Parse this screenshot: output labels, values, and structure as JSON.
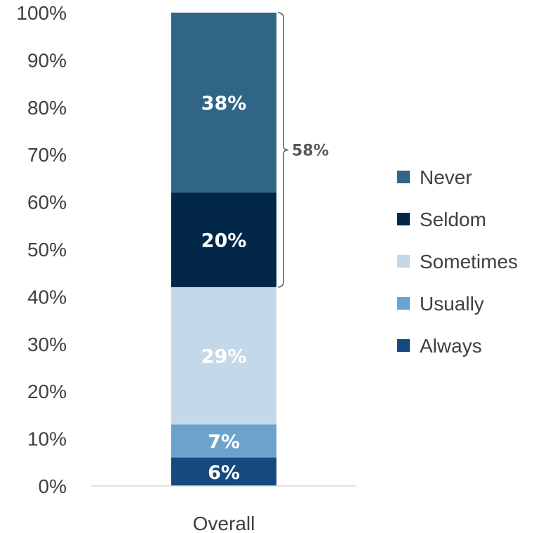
{
  "chart_data": {
    "type": "bar",
    "stacked": true,
    "categories": [
      "Overall"
    ],
    "series": [
      {
        "name": "Always",
        "values": [
          6
        ],
        "label": "6%",
        "color": "#16497e"
      },
      {
        "name": "Usually",
        "values": [
          7
        ],
        "label": "7%",
        "color": "#6ca3cc"
      },
      {
        "name": "Sometimes",
        "values": [
          29
        ],
        "label": "29%",
        "color": "#c3d8e8"
      },
      {
        "name": "Seldom",
        "values": [
          20
        ],
        "label": "20%",
        "color": "#022749"
      },
      {
        "name": "Never",
        "values": [
          38
        ],
        "label": "38%",
        "color": "#306585"
      }
    ],
    "y_ticks": [
      "0%",
      "10%",
      "20%",
      "30%",
      "40%",
      "50%",
      "60%",
      "70%",
      "80%",
      "90%",
      "100%"
    ],
    "ylim": [
      0,
      100
    ],
    "legend": {
      "position": "right",
      "order": [
        "Never",
        "Seldom",
        "Sometimes",
        "Usually",
        "Always"
      ]
    },
    "annotation": {
      "type": "bracket",
      "label": "58%",
      "from_series": "Seldom",
      "to_series": "Never",
      "color": "#595959"
    },
    "grid": false
  }
}
